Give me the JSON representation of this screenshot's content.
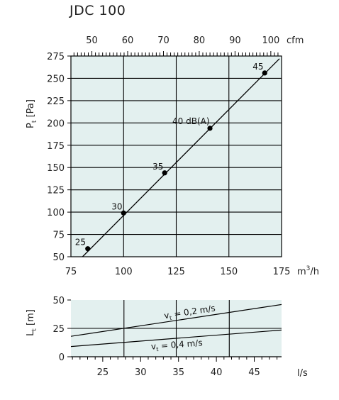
{
  "title": "JDC 100",
  "chart_data": [
    {
      "type": "line",
      "x_unit": "m³/h",
      "x_unit_base": "m",
      "x_unit_sup": "3",
      "x_unit_tail": "/h",
      "x_top_unit": "cfm",
      "y_label_main": "P",
      "y_label_sub": "t",
      "y_label_tail": " [Pa]",
      "xlim": [
        75,
        175
      ],
      "ylim": [
        50,
        275
      ],
      "x_ticks": [
        75,
        100,
        125,
        150,
        175
      ],
      "y_ticks": [
        50,
        75,
        100,
        125,
        150,
        175,
        200,
        225,
        250,
        275
      ],
      "x_top_ticks": [
        50,
        60,
        70,
        80,
        90,
        100
      ],
      "cfm_factor": 1.699,
      "grid": true,
      "background": "#e3f0ef",
      "line": [
        [
          80.5,
          50
        ],
        [
          174,
          272
        ]
      ],
      "points": [
        {
          "x": 83,
          "y": 59,
          "label": "25"
        },
        {
          "x": 100,
          "y": 99,
          "label": "30"
        },
        {
          "x": 119.5,
          "y": 144,
          "label": "35"
        },
        {
          "x": 141,
          "y": 194,
          "label": "40 dB(A)"
        },
        {
          "x": 167,
          "y": 256,
          "label": "45"
        }
      ]
    },
    {
      "type": "line",
      "x_unit": "l/s",
      "y_label_main": "L",
      "y_label_sub": "t",
      "y_label_tail": " [m]",
      "xlim": [
        20.8,
        48.6
      ],
      "ylim": [
        0,
        50
      ],
      "x_ticks": [
        25,
        30,
        35,
        40,
        45
      ],
      "y_ticks": [
        0,
        25,
        50
      ],
      "x_gridlines": [
        27.8,
        34.7,
        41.7
      ],
      "y_gridlines": [
        25
      ],
      "grid": true,
      "background": "#e3f0ef",
      "series": [
        {
          "name": "vt = 0,2 m/s",
          "label_main": "v",
          "label_sub": "t",
          "label_tail": " = 0,2 m/s",
          "x": [
            20.8,
            48.6
          ],
          "y": [
            18,
            46
          ],
          "label_at": 36.6
        },
        {
          "name": "vt = 0,4 m/s",
          "label_main": "v",
          "label_sub": "t",
          "label_tail": " = 0,4 m/s",
          "x": [
            20.8,
            48.6
          ],
          "y": [
            9,
            23.5
          ],
          "label_at": 34.7
        }
      ]
    }
  ]
}
